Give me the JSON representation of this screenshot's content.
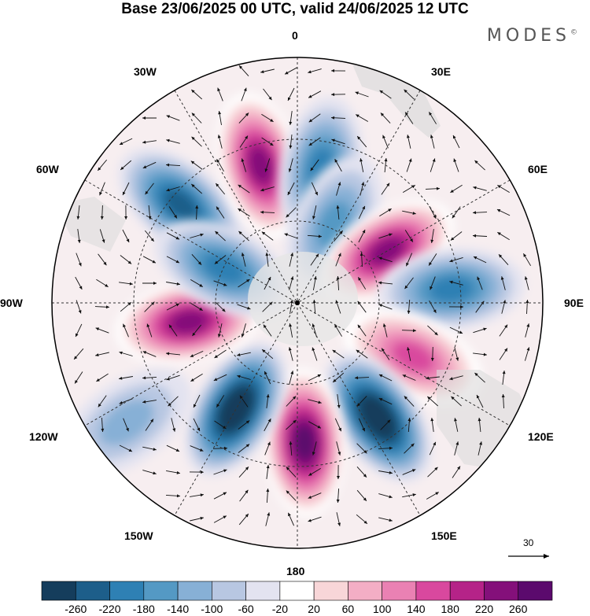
{
  "title": "Base 23/06/2025 00 UTC, valid 24/06/2025 12 UTC",
  "brand": "MODES",
  "brand_mark": "©",
  "map": {
    "projection": "polar stereographic (south pole)",
    "longitude_labels": {
      "top": "0",
      "top_right": "30E",
      "upper_right": "60E",
      "right": "90E",
      "lower_right": "120E",
      "bottom_right": "150E",
      "bottom": "180",
      "bottom_left": "150W",
      "lower_left": "120W",
      "left": "90W",
      "upper_left": "60W",
      "top_left": "30W"
    },
    "wind_reference_vector": "30"
  },
  "colorbar": {
    "tick_labels": [
      "-260",
      "-220",
      "-180",
      "-140",
      "-100",
      "-60",
      "-20",
      "20",
      "60",
      "100",
      "140",
      "180",
      "220",
      "260"
    ],
    "colors": [
      "#153d5c",
      "#1d5e8a",
      "#2e80b4",
      "#5499c4",
      "#87b0d6",
      "#b8c7e2",
      "#e3e3f0",
      "#ffffff",
      "#f8d6d8",
      "#f3aec5",
      "#ea81b3",
      "#d9489e",
      "#b52388",
      "#84107a",
      "#5b0a6d"
    ]
  },
  "anomaly_centers": [
    {
      "lon_deg": -50,
      "colat": 0.62,
      "value": -180
    },
    {
      "lon_deg": -15,
      "colat": 0.58,
      "value": 220
    },
    {
      "lon_deg": 10,
      "colat": 0.55,
      "value": -140
    },
    {
      "lon_deg": 25,
      "colat": 0.35,
      "value": -100
    },
    {
      "lon_deg": 60,
      "colat": 0.42,
      "value": 220
    },
    {
      "lon_deg": 85,
      "colat": 0.63,
      "value": -140
    },
    {
      "lon_deg": 115,
      "colat": 0.52,
      "value": 140
    },
    {
      "lon_deg": 145,
      "colat": 0.57,
      "value": -260
    },
    {
      "lon_deg": 177,
      "colat": 0.57,
      "value": 260
    },
    {
      "lon_deg": -150,
      "colat": 0.5,
      "value": -260
    },
    {
      "lon_deg": -100,
      "colat": 0.45,
      "value": 220
    },
    {
      "lon_deg": -65,
      "colat": 0.33,
      "value": -140
    },
    {
      "lon_deg": -125,
      "colat": 0.85,
      "value": -60
    }
  ]
}
